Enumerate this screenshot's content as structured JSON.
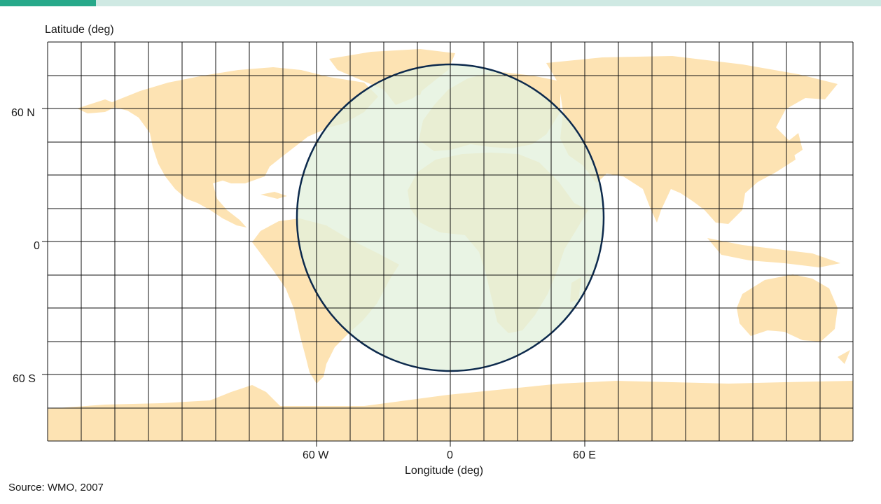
{
  "map": {
    "y_axis_title": "Latitude (deg)",
    "x_axis_title": "Longitude (deg)",
    "lat_ticks": [
      "60 N",
      "0",
      "60 S"
    ],
    "lon_ticks": [
      "60 W",
      "0",
      "60 E"
    ],
    "source": "Source: WMO, 2007",
    "grid_spacing_deg": 15,
    "lon_range": [
      -180,
      180
    ],
    "lat_range": [
      -90,
      90
    ],
    "coverage_circle": {
      "center_lon": 0,
      "center_lat": 0
    },
    "colors": {
      "land": "#fde3b3",
      "coverage_fill": "#e3f1dc",
      "coverage_stroke": "#0d2a4d",
      "grid": "#111111",
      "header_bar": "#cfe9e3",
      "header_accent": "#27a98a"
    }
  }
}
